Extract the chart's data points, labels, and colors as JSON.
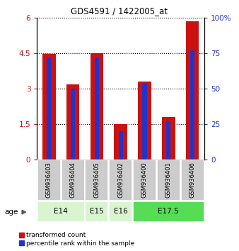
{
  "title": "GDS4591 / 1422005_at",
  "samples": [
    "GSM936403",
    "GSM936404",
    "GSM936405",
    "GSM936402",
    "GSM936400",
    "GSM936401",
    "GSM936406"
  ],
  "transformed_count": [
    4.47,
    3.17,
    4.5,
    1.5,
    3.28,
    1.8,
    5.85
  ],
  "percentile_rank": [
    72,
    50,
    72,
    20,
    54,
    27,
    77
  ],
  "ylim_left": [
    0,
    6
  ],
  "ylim_right": [
    0,
    100
  ],
  "yticks_left": [
    0,
    1.5,
    3.0,
    4.5,
    6
  ],
  "yticks_right": [
    0,
    25,
    50,
    75,
    100
  ],
  "bar_color_red": "#cc1111",
  "bar_color_blue": "#2233cc",
  "red_bar_width": 0.55,
  "blue_bar_width": 0.18,
  "legend_label_red": "transformed count",
  "legend_label_blue": "percentile rank within the sample",
  "age_label": "age",
  "sample_box_color": "#cccccc",
  "age_spans": [
    {
      "label": "E14",
      "start": 0,
      "end": 1,
      "color": "#d8f5d0"
    },
    {
      "label": "E15",
      "start": 2,
      "end": 2,
      "color": "#d8f5d0"
    },
    {
      "label": "E16",
      "start": 3,
      "end": 3,
      "color": "#d8f5d0"
    },
    {
      "label": "E17.5",
      "start": 4,
      "end": 6,
      "color": "#55dd55"
    }
  ]
}
